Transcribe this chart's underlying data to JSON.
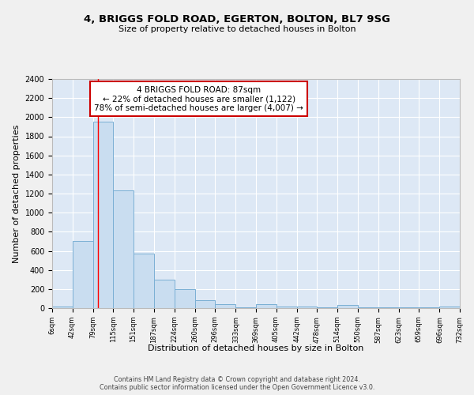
{
  "title": "4, BRIGGS FOLD ROAD, EGERTON, BOLTON, BL7 9SG",
  "subtitle": "Size of property relative to detached houses in Bolton",
  "xlabel": "Distribution of detached houses by size in Bolton",
  "ylabel": "Number of detached properties",
  "bar_color": "#c9ddf0",
  "bar_edge_color": "#7aafd4",
  "background_color": "#dde8f5",
  "grid_color": "#ffffff",
  "fig_background": "#f0f0f0",
  "red_line_x": 87,
  "annotation_title": "4 BRIGGS FOLD ROAD: 87sqm",
  "annotation_line1": "← 22% of detached houses are smaller (1,122)",
  "annotation_line2": "78% of semi-detached houses are larger (4,007) →",
  "footer_line1": "Contains HM Land Registry data © Crown copyright and database right 2024.",
  "footer_line2": "Contains public sector information licensed under the Open Government Licence v3.0.",
  "bin_edges": [
    6,
    42,
    79,
    115,
    151,
    187,
    224,
    260,
    296,
    333,
    369,
    405,
    442,
    478,
    514,
    550,
    587,
    623,
    659,
    696,
    732
  ],
  "bin_counts": [
    20,
    700,
    1950,
    1230,
    575,
    300,
    200,
    85,
    45,
    10,
    40,
    20,
    15,
    10,
    30,
    5,
    5,
    5,
    5,
    20
  ],
  "ylim": [
    0,
    2400
  ],
  "yticks": [
    0,
    200,
    400,
    600,
    800,
    1000,
    1200,
    1400,
    1600,
    1800,
    2000,
    2200,
    2400
  ]
}
